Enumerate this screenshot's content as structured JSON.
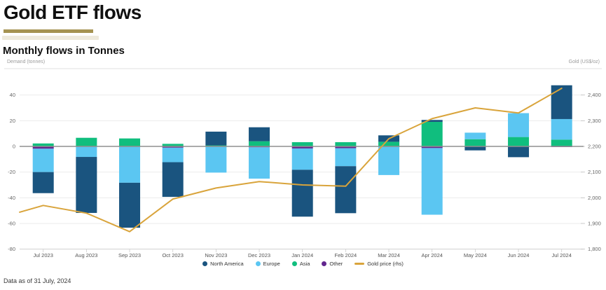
{
  "header": {
    "title": "Gold ETF flows",
    "subtitle": "Monthly flows in Tonnes",
    "left_axis_caption": "Demand (tonnes)",
    "right_axis_caption": "Gold (US$/oz)"
  },
  "footer": {
    "note": "Data as of 31 July, 2024"
  },
  "colors": {
    "north_america": "#1A547F",
    "europe": "#5BC6F2",
    "asia": "#10BE7E",
    "other": "#62268E",
    "gold_line": "#D9A43B",
    "title_underline": "#A59351",
    "zero_line": "#8F8F8F",
    "gridline": "#EBEBEB",
    "axis_line": "#CFCFCF"
  },
  "chart_data": {
    "type": "bar",
    "subtype": "stacked-column-with-line-overlay",
    "title": "Monthly flows in Tonnes",
    "xlabel": "",
    "ylabel": "Demand (tonnes)",
    "ylabel_right": "Gold (US$/oz)",
    "grid": true,
    "legend_position": "bottom",
    "categories": [
      "Jul 2023",
      "Aug 2023",
      "Sep 2023",
      "Oct 2023",
      "Nov 2023",
      "Dec 2023",
      "Jan 2024",
      "Feb 2024",
      "Mar 2024",
      "Apr 2024",
      "May 2024",
      "Jun 2024",
      "Jul 2024"
    ],
    "series": [
      {
        "name": "North America",
        "color": "#1A547F",
        "values": [
          -16.4,
          -43.6,
          -35.0,
          -27.0,
          10.7,
          10.9,
          -36.5,
          -36.6,
          5.0,
          1.5,
          -3.1,
          -8.4,
          26.3
        ]
      },
      {
        "name": "Europe",
        "color": "#5BC6F2",
        "values": [
          -18.2,
          -8.2,
          -28.3,
          -11.3,
          -20.4,
          -24.4,
          -16.6,
          -14.0,
          -22.3,
          -51.9,
          5.1,
          18.6,
          16.0
        ]
      },
      {
        "name": "Asia",
        "color": "#10BE7E",
        "values": [
          2.3,
          6.7,
          6.2,
          2.0,
          0.8,
          4.0,
          3.3,
          3.3,
          3.6,
          19.1,
          5.6,
          7.3,
          5.3
        ]
      },
      {
        "name": "Other",
        "color": "#62268E",
        "values": [
          -1.8,
          0,
          0,
          -1.0,
          0,
          -0.7,
          -1.6,
          -1.4,
          0,
          -1.3,
          0,
          0,
          -0.5
        ]
      }
    ],
    "stack_order": [
      "Other",
      "Asia",
      "Europe",
      "North America"
    ],
    "line_series": {
      "name": "Gold price (rhs)",
      "color": "#D9A43B",
      "axis": "right",
      "values": [
        1970,
        1940,
        1868,
        1995,
        2038,
        2063,
        2050,
        2045,
        2230,
        2308,
        2350,
        2330,
        2426
      ],
      "leading_edge_value": 1944
    },
    "left_axis": {
      "label": "Demand (tonnes)",
      "tick_labels": [
        "40",
        "20",
        "0",
        "-20",
        "-40",
        "-60",
        "-80"
      ],
      "tick_values": [
        40,
        20,
        0,
        -20,
        -40,
        -60,
        -80
      ],
      "range": [
        -80,
        60
      ]
    },
    "right_axis": {
      "label": "Gold (US$/oz)",
      "tick_labels": [
        "2,400",
        "2,300",
        "2,200",
        "2,100",
        "2,000",
        "1,900",
        "1,800"
      ],
      "tick_values": [
        2400,
        2300,
        2200,
        2100,
        2000,
        1900,
        1800
      ],
      "range": [
        1800,
        2500
      ]
    },
    "legend": [
      {
        "label": "North America",
        "color": "#1A547F",
        "marker": "dot"
      },
      {
        "label": "Europe",
        "color": "#5BC6F2",
        "marker": "dot"
      },
      {
        "label": "Asia",
        "color": "#10BE7E",
        "marker": "dot"
      },
      {
        "label": "Other",
        "color": "#62268E",
        "marker": "dot"
      },
      {
        "label": "Gold price (rhs)",
        "color": "#D9A43B",
        "marker": "line"
      }
    ]
  }
}
